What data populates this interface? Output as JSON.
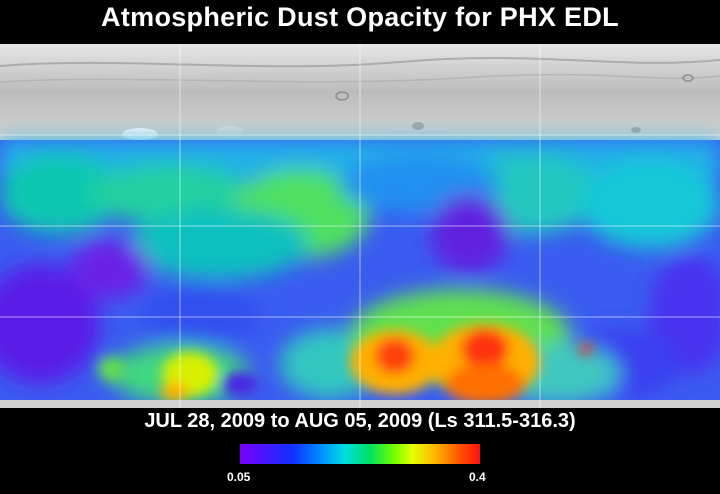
{
  "title": "Atmospheric Dust Opacity for PHX EDL",
  "date_range": "JUL 28, 2009 to AUG 05, 2009 (Ls 311.5-316.3)",
  "colorbar": {
    "min_label": "0.05",
    "max_label": "0.4",
    "colors": [
      "#7a00ff",
      "#1030ff",
      "#00e0e0",
      "#00e060",
      "#e8ff00",
      "#ffb000",
      "#ff1010"
    ]
  },
  "map": {
    "description_colors": {
      "no_data_terrain": "#c8c8c8",
      "grid": "#ffffff"
    }
  }
}
